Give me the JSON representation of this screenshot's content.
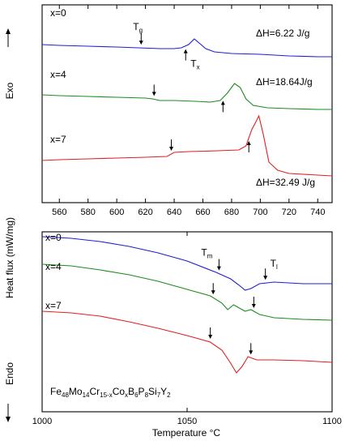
{
  "figure": {
    "y_axis_label": "Heat flux (mW/mg)",
    "exo_label": "Exo",
    "endo_label": "Endo",
    "formula": {
      "parts": [
        {
          "t": "Fe",
          "sub": "48"
        },
        {
          "t": "Mo",
          "sub": "14"
        },
        {
          "t": "Cr",
          "sub": "15-x"
        },
        {
          "t": "Co",
          "sub": "x"
        },
        {
          "t": "B",
          "sub": "6"
        },
        {
          "t": "P",
          "sub": "8"
        },
        {
          "t": "Si",
          "sub": "7"
        },
        {
          "t": "Y",
          "sub": "2"
        }
      ]
    }
  },
  "chart_data": [
    {
      "type": "line",
      "panel": "top",
      "xlabel": "",
      "x_ticks": [
        560,
        580,
        600,
        620,
        640,
        660,
        680,
        700,
        720,
        740
      ],
      "xlim": [
        548,
        750
      ],
      "y_ticks_shown": false,
      "series": [
        {
          "name": "x=0",
          "color": "#1f1fd0",
          "x": [
            548,
            560,
            580,
            600,
            615,
            630,
            640,
            645,
            650,
            654,
            658,
            662,
            668,
            680,
            700,
            720,
            740,
            750
          ],
          "y": [
            55,
            56,
            57,
            58,
            59,
            60,
            60,
            59,
            55,
            48,
            54,
            60,
            64,
            66,
            67,
            69,
            70,
            70
          ],
          "annotations": [
            {
              "label": "ΔH=6.22 J/g"
            }
          ]
        },
        {
          "name": "x=4",
          "color": "#1a8c1a",
          "x": [
            548,
            560,
            580,
            600,
            620,
            625,
            630,
            640,
            655,
            665,
            672,
            677,
            682,
            686,
            690,
            695,
            705,
            720,
            740,
            750
          ],
          "y": [
            117,
            118,
            119,
            120,
            121,
            122,
            124,
            124,
            125,
            126,
            124,
            115,
            103,
            108,
            122,
            130,
            133,
            134,
            135,
            135
          ],
          "annotations": [
            {
              "label": "ΔH=18.64J/g"
            }
          ]
        },
        {
          "name": "x=7",
          "color": "#e02020",
          "x": [
            548,
            560,
            580,
            600,
            620,
            635,
            640,
            650,
            670,
            685,
            690,
            694,
            697,
            699,
            702,
            706,
            712,
            720,
            740,
            750
          ],
          "y": [
            198,
            197,
            196,
            195,
            194,
            193,
            188,
            187,
            186,
            185,
            180,
            160,
            150,
            143,
            165,
            200,
            210,
            214,
            216,
            217
          ],
          "annotations": [
            {
              "label": "ΔH=32.49 J/g"
            }
          ]
        }
      ],
      "markers": [
        {
          "series": "x=0",
          "x": 617,
          "dir": "down",
          "label": "T",
          "sub": "g"
        },
        {
          "series": "x=0",
          "x": 648,
          "dir": "up",
          "label": "T",
          "sub": "x"
        },
        {
          "series": "x=4",
          "x": 626,
          "dir": "down"
        },
        {
          "series": "x=4",
          "x": 674,
          "dir": "up"
        },
        {
          "series": "x=7",
          "x": 638,
          "dir": "down"
        },
        {
          "series": "x=7",
          "x": 692,
          "dir": "up"
        }
      ]
    },
    {
      "type": "line",
      "panel": "bottom",
      "xlabel": "Temperature °C",
      "x_ticks": [
        1000,
        1050,
        1100
      ],
      "xlim": [
        1000,
        1100
      ],
      "y_ticks_shown": false,
      "series": [
        {
          "name": "x=0",
          "color": "#1f1fd0",
          "x": [
            1000,
            1010,
            1020,
            1030,
            1040,
            1050,
            1060,
            1065,
            1068,
            1070,
            1072,
            1075,
            1080,
            1090,
            1100
          ],
          "y": [
            292,
            294,
            298,
            304,
            312,
            322,
            336,
            344,
            352,
            358,
            356,
            350,
            348,
            350,
            350
          ],
          "annotations": []
        },
        {
          "name": "x=4",
          "color": "#1a8c1a",
          "x": [
            1000,
            1010,
            1020,
            1030,
            1040,
            1050,
            1058,
            1062,
            1064,
            1066,
            1068,
            1070,
            1072,
            1075,
            1080,
            1090,
            1100
          ],
          "y": [
            326,
            328,
            333,
            339,
            347,
            357,
            365,
            374,
            382,
            376,
            380,
            384,
            382,
            388,
            392,
            394,
            395
          ],
          "annotations": []
        },
        {
          "name": "x=7",
          "color": "#e02020",
          "x": [
            1000,
            1010,
            1020,
            1030,
            1040,
            1050,
            1058,
            1062,
            1065,
            1067,
            1069,
            1071,
            1074,
            1080,
            1090,
            1100
          ],
          "y": [
            384,
            386,
            390,
            397,
            405,
            414,
            422,
            432,
            448,
            460,
            452,
            440,
            444,
            444,
            445,
            447
          ],
          "annotations": []
        }
      ],
      "markers": [
        {
          "series": "x=0",
          "x": 1061,
          "dir": "down",
          "label": "T",
          "sub": "m"
        },
        {
          "series": "x=0",
          "x": 1077,
          "dir": "down",
          "label": "T",
          "sub": "l"
        },
        {
          "series": "x=4",
          "x": 1059,
          "dir": "down"
        },
        {
          "series": "x=4",
          "x": 1073,
          "dir": "down"
        },
        {
          "series": "x=7",
          "x": 1058,
          "dir": "down"
        },
        {
          "series": "x=7",
          "x": 1072,
          "dir": "down"
        }
      ]
    }
  ]
}
